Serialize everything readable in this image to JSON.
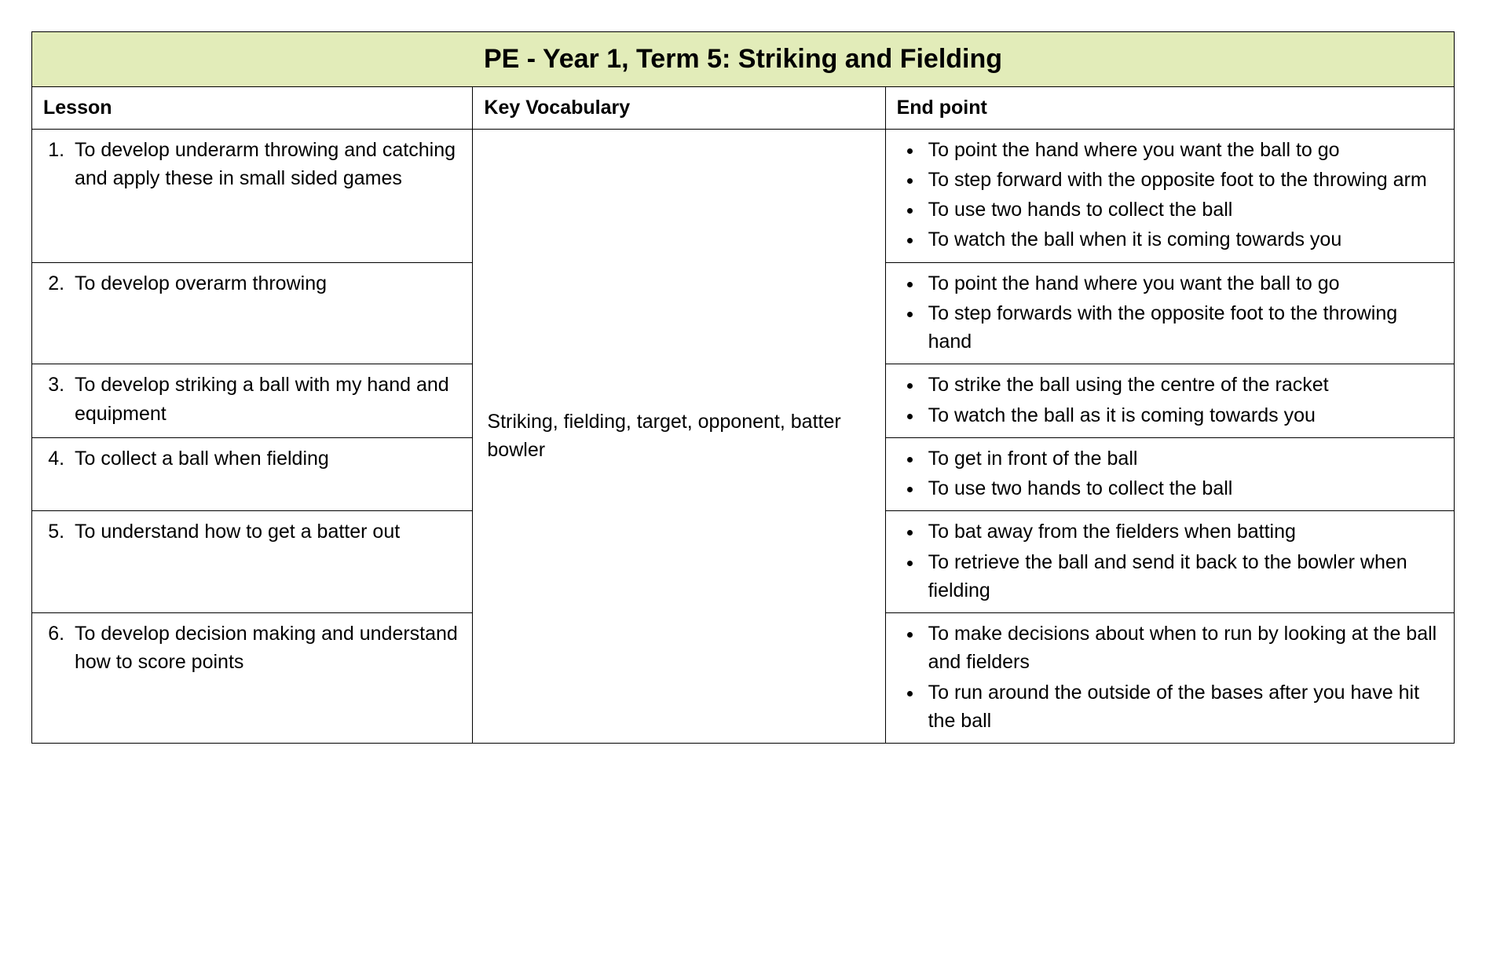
{
  "title": "PE - Year 1, Term 5: Striking and Fielding",
  "headers": {
    "lesson": "Lesson",
    "vocab": "Key Vocabulary",
    "endpoint": "End point"
  },
  "vocab": "Striking, fielding, target, opponent, batter bowler",
  "lessons": [
    {
      "num": "1.",
      "text": "To develop underarm throwing and catching and apply these in small sided games",
      "points": [
        "To point the hand where you want the ball to go",
        "To step forward with the opposite foot to the throwing arm",
        "To use two hands to collect the ball",
        "To watch the ball when it is coming towards you"
      ]
    },
    {
      "num": "2.",
      "text": "To develop overarm throwing",
      "points": [
        "To point the hand where you want the ball to go",
        "To step forwards with the opposite foot to the throwing hand"
      ]
    },
    {
      "num": "3.",
      "text": "To develop striking a ball with my hand and equipment",
      "points": [
        "To strike the ball using the centre of the racket",
        "To watch the ball as it is coming towards you"
      ]
    },
    {
      "num": "4.",
      "text": "To collect a ball when fielding",
      "points": [
        "To get in front of the ball",
        "To use two hands to collect the ball"
      ]
    },
    {
      "num": "5.",
      "text": "To understand how to get a batter out",
      "points": [
        "To bat away from the fielders when batting",
        "To retrieve the ball and send it back to the bowler when fielding"
      ]
    },
    {
      "num": "6.",
      "text": "To develop decision making and understand how to score points",
      "points": [
        "To make decisions about when to run by looking at the ball and fielders",
        "To run around the outside of the bases after you have hit the ball"
      ]
    }
  ]
}
